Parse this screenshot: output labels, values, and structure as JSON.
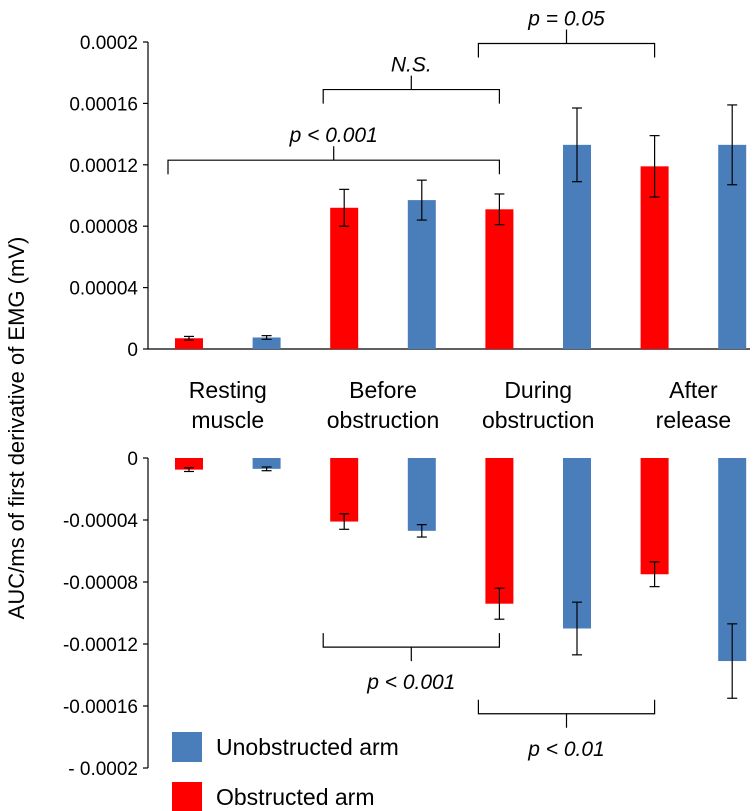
{
  "chart_data": {
    "type": "bar",
    "ylabel": "AUC/ms of first derivative of EMG (mV)",
    "groups": [
      "Resting\nmuscle",
      "Before\nobstruction",
      "During\nobstruction",
      "After\nrelease"
    ],
    "series": [
      {
        "name": "Obstructed arm",
        "color": "#ff0000"
      },
      {
        "name": "Unobstructed arm",
        "color": "#4a7ebb"
      }
    ],
    "legend": {
      "placement": "bottom-left",
      "entries": [
        {
          "label": "Unobstructed arm",
          "color": "#4a7ebb"
        },
        {
          "label": "Obstructed arm",
          "color": "#ff0000"
        }
      ]
    },
    "panels": [
      {
        "id": "positive",
        "ylim": [
          0,
          0.0002
        ],
        "yticks": [
          "0",
          "0.00004",
          "0.00008",
          "0.00012",
          "0.00016",
          "0.0002"
        ],
        "bars": [
          {
            "series": "Obstructed arm",
            "value": 7e-06,
            "err": 1.2e-06
          },
          {
            "series": "Unobstructed arm",
            "value": 7.5e-06,
            "err": 1.2e-06
          },
          {
            "series": "Obstructed arm",
            "value": 9.2e-05,
            "err": 1.2e-05
          },
          {
            "series": "Unobstructed arm",
            "value": 9.7e-05,
            "err": 1.3e-05
          },
          {
            "series": "Obstructed arm",
            "value": 9.1e-05,
            "err": 1e-05
          },
          {
            "series": "Unobstructed arm",
            "value": 0.000133,
            "err": 2.4e-05
          },
          {
            "series": "Obstructed arm",
            "value": 0.000119,
            "err": 2e-05
          },
          {
            "series": "Unobstructed arm",
            "value": 0.000133,
            "err": 2.6e-05
          }
        ],
        "annotations": [
          {
            "text": "p < 0.001",
            "from_bar": 0,
            "to_bar": 4,
            "level": 0.000123
          },
          {
            "text": "N.S.",
            "from_bar": 2,
            "to_bar": 4,
            "level": 0.000169
          },
          {
            "text": "p = 0.05",
            "from_bar": 4,
            "to_bar": 6,
            "level": 0.000199
          }
        ]
      },
      {
        "id": "negative",
        "ylim": [
          -0.0002,
          0
        ],
        "yticks": [
          "0",
          "-0.00004",
          "-0.00008",
          "-0.00012",
          "-0.00016",
          "- 0.0002"
        ],
        "bars": [
          {
            "series": "Obstructed arm",
            "value": -7.5e-06,
            "err": 1.2e-06
          },
          {
            "series": "Unobstructed arm",
            "value": -7e-06,
            "err": 1.2e-06
          },
          {
            "series": "Obstructed arm",
            "value": -4.1e-05,
            "err": 5e-06
          },
          {
            "series": "Unobstructed arm",
            "value": -4.7e-05,
            "err": 4e-06
          },
          {
            "series": "Obstructed arm",
            "value": -9.4e-05,
            "err": 1e-05
          },
          {
            "series": "Unobstructed arm",
            "value": -0.00011,
            "err": 1.7e-05
          },
          {
            "series": "Obstructed arm",
            "value": -7.5e-05,
            "err": 8e-06
          },
          {
            "series": "Unobstructed arm",
            "value": -0.000131,
            "err": 2.4e-05
          }
        ],
        "annotations": [
          {
            "text": "p < 0.001",
            "from_bar": 2,
            "to_bar": 4,
            "level": -0.000122
          },
          {
            "text": "p < 0.01",
            "from_bar": 4,
            "to_bar": 6,
            "level": -0.000165
          }
        ]
      }
    ]
  }
}
